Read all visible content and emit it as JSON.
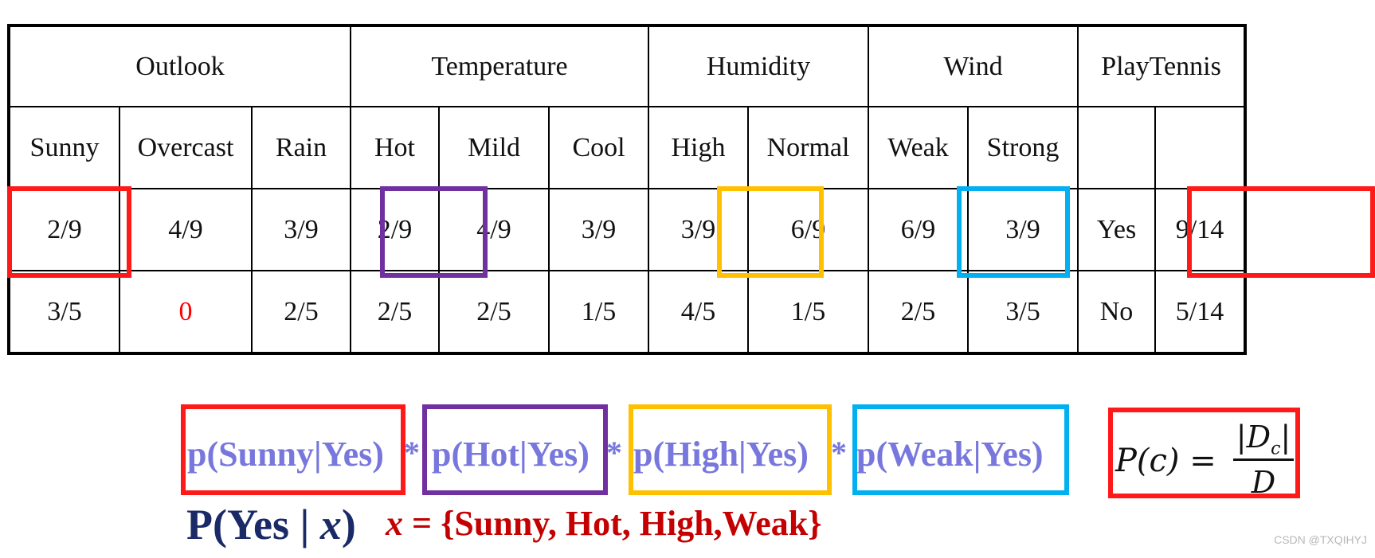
{
  "table": {
    "groups": [
      "Outlook",
      "Temperature",
      "Humidity",
      "Wind",
      "PlayTennis"
    ],
    "attributes": [
      "Sunny",
      "Overcast",
      "Rain",
      "Hot",
      "Mild",
      "Cool",
      "High",
      "Normal",
      "Weak",
      "Strong",
      "",
      ""
    ],
    "rows": [
      [
        "2/9",
        "4/9",
        "3/9",
        "2/9",
        "4/9",
        "3/9",
        "3/9",
        "6/9",
        "6/9",
        "3/9",
        "Yes",
        "9/14"
      ],
      [
        "3/5",
        "0",
        "2/5",
        "2/5",
        "2/5",
        "1/5",
        "4/5",
        "1/5",
        "2/5",
        "3/5",
        "No",
        "5/14"
      ]
    ]
  },
  "formula": {
    "terms": [
      "p(Sunny|Yes)",
      "p(Hot|Yes)",
      "p(High|Yes)",
      "p(Weak|Yes)"
    ],
    "operator": "*",
    "posterior_prefix": "P(Yes | ",
    "posterior_var": "x",
    "posterior_suffix": ")",
    "x_var": "x",
    "x_value": " = {Sunny, Hot, High,Weak}",
    "prior_lhs": "P(c) =",
    "prior_num": "|D",
    "prior_num_sub": "c",
    "prior_num_end": "|",
    "prior_den": "D"
  },
  "colors": {
    "red": "#ff1a1a",
    "purple": "#7030a0",
    "yellow": "#ffc000",
    "cyan": "#00b0f0",
    "term_text": "#7777dd",
    "posterior_text": "#1a2a66",
    "x_text": "#c40000"
  },
  "watermark": "CSDN @TXQIHYJ"
}
